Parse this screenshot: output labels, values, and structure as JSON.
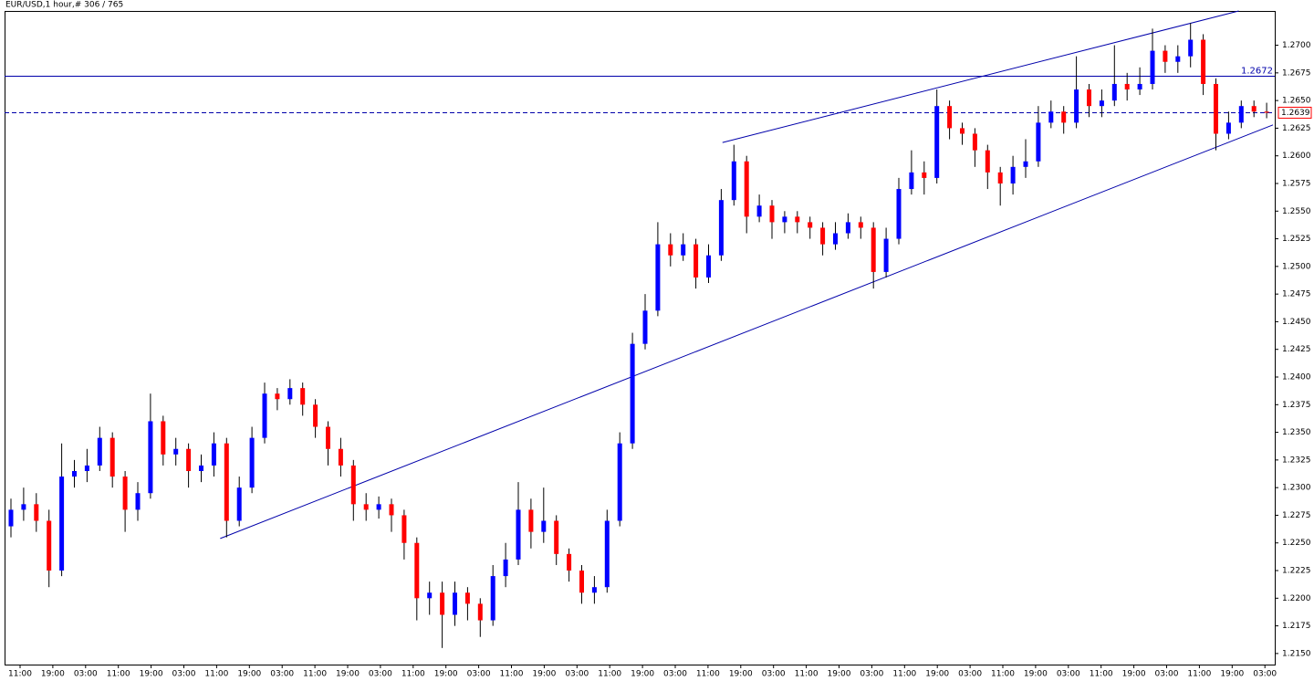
{
  "chart_data": {
    "type": "candlestick",
    "title": "EUR/USD,1 hour,# 306 / 765",
    "open": [
      1.2265,
      1.228,
      1.2285,
      1.227,
      1.2225,
      1.231,
      1.2315,
      1.232,
      1.2345,
      1.231,
      1.228,
      1.2295,
      1.236,
      1.233,
      1.2335,
      1.2315,
      1.232,
      1.234,
      1.227,
      1.23,
      1.2345,
      1.2385,
      1.238,
      1.239,
      1.2375,
      1.2355,
      1.2335,
      1.232,
      1.2285,
      1.228,
      1.2285,
      1.2275,
      1.225,
      1.22,
      1.2205,
      1.2185,
      1.2205,
      1.2195,
      1.218,
      1.222,
      1.2235,
      1.228,
      1.226,
      1.227,
      1.224,
      1.2225,
      1.2205,
      1.221,
      1.227,
      1.234,
      1.243,
      1.246,
      1.252,
      1.251,
      1.252,
      1.249,
      1.251,
      1.256,
      1.2595,
      1.2545,
      1.2555,
      1.254,
      1.2545,
      1.254,
      1.2535,
      1.252,
      1.253,
      1.254,
      1.2535,
      1.2495,
      1.2525,
      1.257,
      1.2585,
      1.258,
      1.2645,
      1.2625,
      1.262,
      1.2605,
      1.2585,
      1.2575,
      1.259,
      1.2595,
      1.263,
      1.264,
      1.263,
      1.266,
      1.2645,
      1.265,
      1.2665,
      1.266,
      1.2665,
      1.2695,
      1.2685,
      1.269,
      1.2705,
      1.2665,
      1.262,
      1.263,
      1.2645,
      1.264
    ],
    "high": [
      1.229,
      1.23,
      1.2295,
      1.228,
      1.234,
      1.2325,
      1.2335,
      1.2355,
      1.235,
      1.2315,
      1.2305,
      1.2385,
      1.2365,
      1.2345,
      1.234,
      1.233,
      1.235,
      1.2345,
      1.231,
      1.2355,
      1.2395,
      1.239,
      1.2398,
      1.2395,
      1.238,
      1.236,
      1.2345,
      1.2325,
      1.2295,
      1.2292,
      1.229,
      1.228,
      1.2255,
      1.2215,
      1.2215,
      1.2215,
      1.221,
      1.22,
      1.223,
      1.225,
      1.2305,
      1.229,
      1.23,
      1.2275,
      1.2245,
      1.223,
      1.222,
      1.228,
      1.235,
      1.244,
      1.2475,
      1.254,
      1.253,
      1.253,
      1.2525,
      1.252,
      1.257,
      1.261,
      1.26,
      1.2565,
      1.256,
      1.255,
      1.255,
      1.2545,
      1.254,
      1.254,
      1.2548,
      1.2545,
      1.254,
      1.2535,
      1.258,
      1.2605,
      1.2595,
      1.266,
      1.265,
      1.263,
      1.2625,
      1.261,
      1.259,
      1.26,
      1.2615,
      1.2645,
      1.265,
      1.2645,
      1.269,
      1.2665,
      1.266,
      1.27,
      1.2675,
      1.268,
      1.2715,
      1.27,
      1.27,
      1.272,
      1.271,
      1.267,
      1.264,
      1.265,
      1.265,
      1.2648
    ],
    "low": [
      1.2255,
      1.227,
      1.226,
      1.221,
      1.222,
      1.23,
      1.2305,
      1.2315,
      1.23,
      1.226,
      1.227,
      1.229,
      1.232,
      1.232,
      1.23,
      1.2305,
      1.231,
      1.2255,
      1.2265,
      1.2295,
      1.234,
      1.237,
      1.2375,
      1.2365,
      1.2345,
      1.232,
      1.231,
      1.227,
      1.227,
      1.2272,
      1.226,
      1.2235,
      1.218,
      1.2185,
      1.2155,
      1.2175,
      1.218,
      1.2165,
      1.2175,
      1.221,
      1.223,
      1.2245,
      1.225,
      1.223,
      1.2215,
      1.2195,
      1.2195,
      1.2205,
      1.2265,
      1.2335,
      1.2425,
      1.2455,
      1.25,
      1.2505,
      1.248,
      1.2485,
      1.2505,
      1.2555,
      1.253,
      1.254,
      1.2525,
      1.253,
      1.253,
      1.2525,
      1.251,
      1.2515,
      1.2525,
      1.2525,
      1.248,
      1.249,
      1.252,
      1.2565,
      1.2565,
      1.2575,
      1.2615,
      1.261,
      1.259,
      1.257,
      1.2555,
      1.2565,
      1.258,
      1.259,
      1.2625,
      1.262,
      1.2625,
      1.2635,
      1.2635,
      1.2645,
      1.265,
      1.2655,
      1.266,
      1.2675,
      1.2675,
      1.268,
      1.2655,
      1.2605,
      1.2615,
      1.2625,
      1.2635,
      1.2634
    ],
    "close": [
      1.228,
      1.2285,
      1.227,
      1.2225,
      1.231,
      1.2315,
      1.232,
      1.2345,
      1.231,
      1.228,
      1.2295,
      1.236,
      1.233,
      1.2335,
      1.2315,
      1.232,
      1.234,
      1.227,
      1.23,
      1.2345,
      1.2385,
      1.238,
      1.239,
      1.2375,
      1.2355,
      1.2335,
      1.232,
      1.2285,
      1.228,
      1.2285,
      1.2275,
      1.225,
      1.22,
      1.2205,
      1.2185,
      1.2205,
      1.2195,
      1.218,
      1.222,
      1.2235,
      1.228,
      1.226,
      1.227,
      1.224,
      1.2225,
      1.2205,
      1.221,
      1.227,
      1.234,
      1.243,
      1.246,
      1.252,
      1.251,
      1.252,
      1.249,
      1.251,
      1.256,
      1.2595,
      1.2545,
      1.2555,
      1.254,
      1.2545,
      1.254,
      1.2535,
      1.252,
      1.253,
      1.254,
      1.2535,
      1.2495,
      1.2525,
      1.257,
      1.2585,
      1.258,
      1.2645,
      1.2625,
      1.262,
      1.2605,
      1.2585,
      1.2575,
      1.259,
      1.2595,
      1.263,
      1.264,
      1.263,
      1.266,
      1.2645,
      1.265,
      1.2665,
      1.266,
      1.2665,
      1.2695,
      1.2685,
      1.269,
      1.2705,
      1.2665,
      1.262,
      1.263,
      1.2645,
      1.264,
      1.2639
    ],
    "x_labels": [
      "11:00",
      "19:00",
      "03:00",
      "11:00",
      "19:00",
      "03:00",
      "11:00",
      "19:00",
      "03:00",
      "11:00",
      "19:00",
      "03:00",
      "11:00",
      "19:00",
      "03:00",
      "11:00",
      "19:00",
      "03:00",
      "11:00",
      "19:00",
      "03:00",
      "11:00",
      "19:00",
      "03:00",
      "11:00",
      "19:00",
      "03:00",
      "11:00",
      "19:00",
      "03:00",
      "11:00",
      "19:00",
      "03:00",
      "11:00",
      "19:00",
      "03:00",
      "11:00",
      "19:00",
      "03:00"
    ],
    "ylim": [
      1.214,
      1.2731
    ],
    "yticks": [
      {
        "value": 1.215,
        "label": "1.2150"
      },
      1.2175,
      {
        "value": 1.22,
        "label": "1.2200"
      },
      1.2225,
      {
        "value": 1.225,
        "label": "1.2250"
      },
      1.2275,
      {
        "value": 1.23,
        "label": "1.2300"
      },
      1.2325,
      {
        "value": 1.235,
        "label": "1.2350"
      },
      1.2375,
      {
        "value": 1.24,
        "label": "1.2400"
      },
      1.2425,
      {
        "value": 1.245,
        "label": "1.2450"
      },
      1.2475,
      {
        "value": 1.25,
        "label": "1.2500"
      },
      1.2525,
      {
        "value": 1.255,
        "label": "1.2550"
      },
      1.2575,
      {
        "value": 1.26,
        "label": "1.2600"
      },
      1.2625,
      {
        "value": 1.265,
        "label": "1.2650"
      },
      1.2675,
      {
        "value": 1.27,
        "label": "1.2700"
      }
    ],
    "level": 1.2672,
    "bid": 1.2639,
    "trendlines": [
      {
        "x1": 56.1,
        "y1": 1.2612,
        "x2": 96.8,
        "y2": 1.2731
      },
      {
        "x1": 16.5,
        "y1": 1.2254,
        "x2": 99.5,
        "y2": 1.2628
      }
    ],
    "up_color": "#0000ff",
    "down_color": "#ff0000",
    "wick_color": "#000000",
    "line_color": "#0000aa"
  }
}
